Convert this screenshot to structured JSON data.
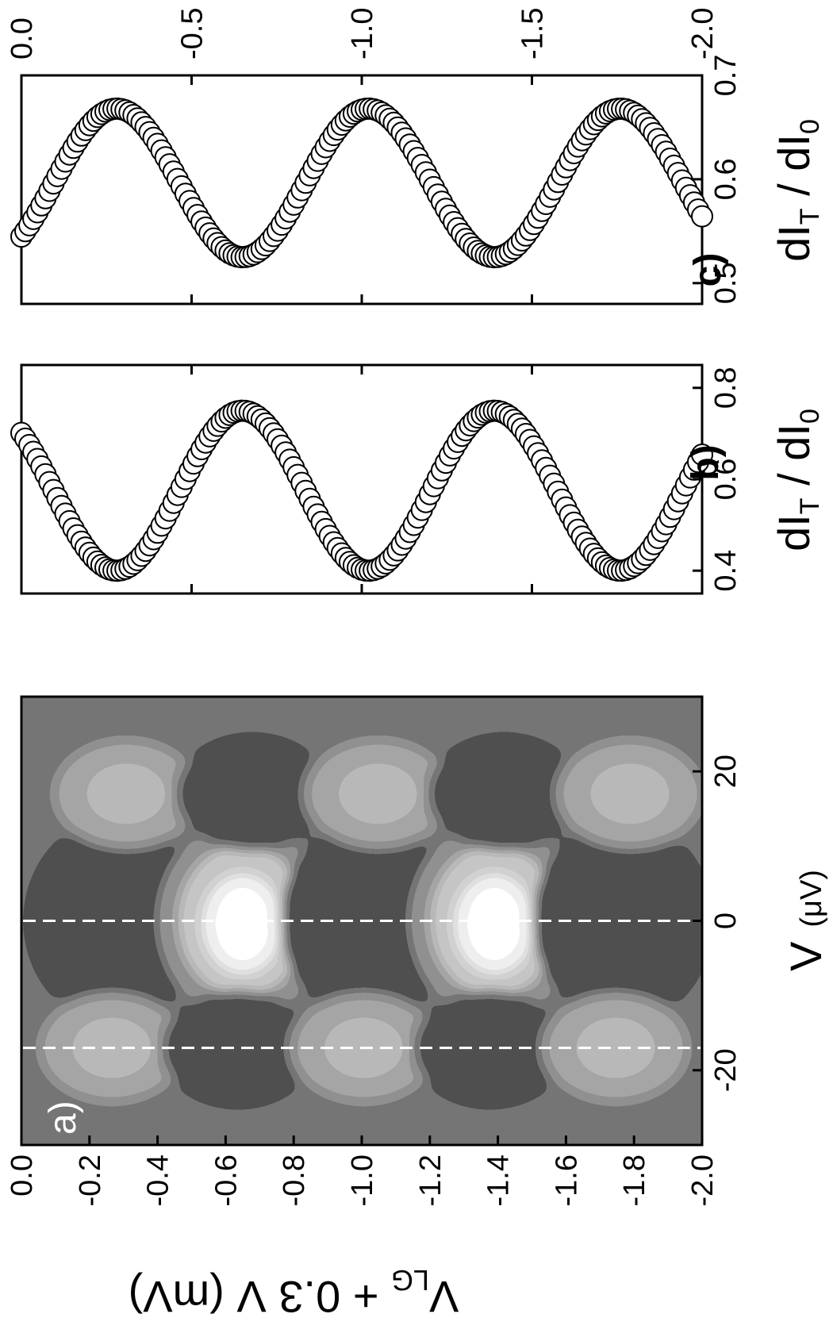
{
  "chart_data": [
    {
      "panel": "a)",
      "type": "heatmap",
      "colormap": "grayscale contour",
      "xlabel": "V",
      "xlabel_unit": "(μV)",
      "ylabel": "V",
      "ylabel_sub": "LG",
      "ylabel_rest": " + 0.3 V (mV)",
      "xlim": [
        -30,
        30
      ],
      "ylim": [
        0.0,
        -2.0
      ],
      "xticks": [
        -20,
        0,
        20
      ],
      "yticks": [
        0.0,
        -0.2,
        -0.4,
        -0.6,
        -0.8,
        -1.0,
        -1.2,
        -1.4,
        -1.6,
        -1.8,
        -2.0
      ],
      "ytick_labels": [
        "0.0",
        "-0.2",
        "-0.4",
        "-0.6",
        "-0.8",
        "-1.0",
        "-1.2",
        "-1.4",
        "-1.6",
        "-1.8",
        "-2.0"
      ],
      "dashed_lines_x": [
        0,
        -17
      ],
      "extrema": [
        {
          "v_lg": -0.28,
          "kind": "dark"
        },
        {
          "v_lg": -0.65,
          "kind": "light"
        },
        {
          "v_lg": -1.02,
          "kind": "dark"
        },
        {
          "v_lg": -1.39,
          "kind": "light"
        },
        {
          "v_lg": -1.76,
          "kind": "dark"
        }
      ]
    },
    {
      "panel": "b)",
      "type": "scatter",
      "xlabel": "dI",
      "xlabel_sub1": "T",
      "xlabel_mid": " / dI",
      "xlabel_sub2": "0",
      "xlim": [
        0.35,
        0.85
      ],
      "xticks": [
        0.4,
        0.6,
        0.8
      ],
      "xtick_labels": [
        "0.4",
        "0.6",
        "0.8"
      ],
      "ylim": [
        0.0,
        -2.0
      ],
      "model": "sinusoid",
      "min": 0.4,
      "max": 0.75,
      "min_at_v_lg": [
        -0.28,
        -1.02,
        -1.76
      ],
      "period": 0.74
    },
    {
      "panel": "c)",
      "type": "scatter",
      "xlabel": "dI",
      "xlabel_sub1": "T",
      "xlabel_mid": " / dI",
      "xlabel_sub2": "0",
      "xlim": [
        0.48,
        0.7
      ],
      "xticks": [
        0.5,
        0.6,
        0.7
      ],
      "xtick_labels": [
        "0.5",
        "0.6",
        "0.7"
      ],
      "ylim": [
        0.0,
        -2.0
      ],
      "yticks": [
        0.0,
        -0.5,
        -1.0,
        -1.5,
        -2.0
      ],
      "ytick_labels": [
        "0.0",
        "-0.5",
        "-1.0",
        "-1.5",
        "-2.0"
      ],
      "model": "sinusoid",
      "min": 0.525,
      "max": 0.668,
      "max_at_v_lg": [
        -0.28,
        -1.02,
        -1.76
      ],
      "period": 0.74
    }
  ]
}
